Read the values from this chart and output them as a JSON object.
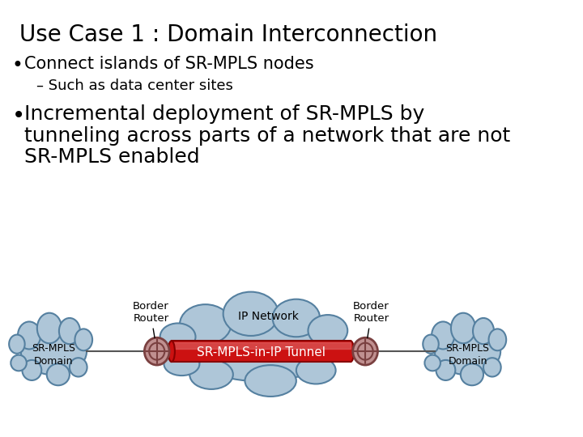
{
  "title": "Use Case 1 : Domain Interconnection",
  "bullet1": "Connect islands of SR-MPLS nodes",
  "sub_bullet1": "– Such as data center sites",
  "bullet2_line1": "Incremental deployment of SR-MPLS by",
  "bullet2_line2": "tunneling across parts of a network that are not",
  "bullet2_line3": "SR-MPLS enabled",
  "border_router_label": "Border\nRouter",
  "ip_network_label": "IP Network",
  "tunnel_label": "SR-MPLS-in-IP Tunnel",
  "sr_mpls_domain_label": "SR-MPLS\nDomain",
  "cloud_color": "#aec6d8",
  "cloud_edge_color": "#5580a0",
  "tunnel_color": "#cc1111",
  "tunnel_highlight": "#dd6666",
  "tunnel_edge_color": "#880000",
  "router_fill": "#c09090",
  "router_edge": "#7a4040",
  "bg_color": "#ffffff",
  "text_color": "#000000",
  "title_fontsize": 20,
  "bullet_fontsize": 15,
  "sub_bullet_fontsize": 13,
  "bullet2_fontsize": 18,
  "diagram_text_fontsize": 9,
  "tunnel_text_fontsize": 11
}
